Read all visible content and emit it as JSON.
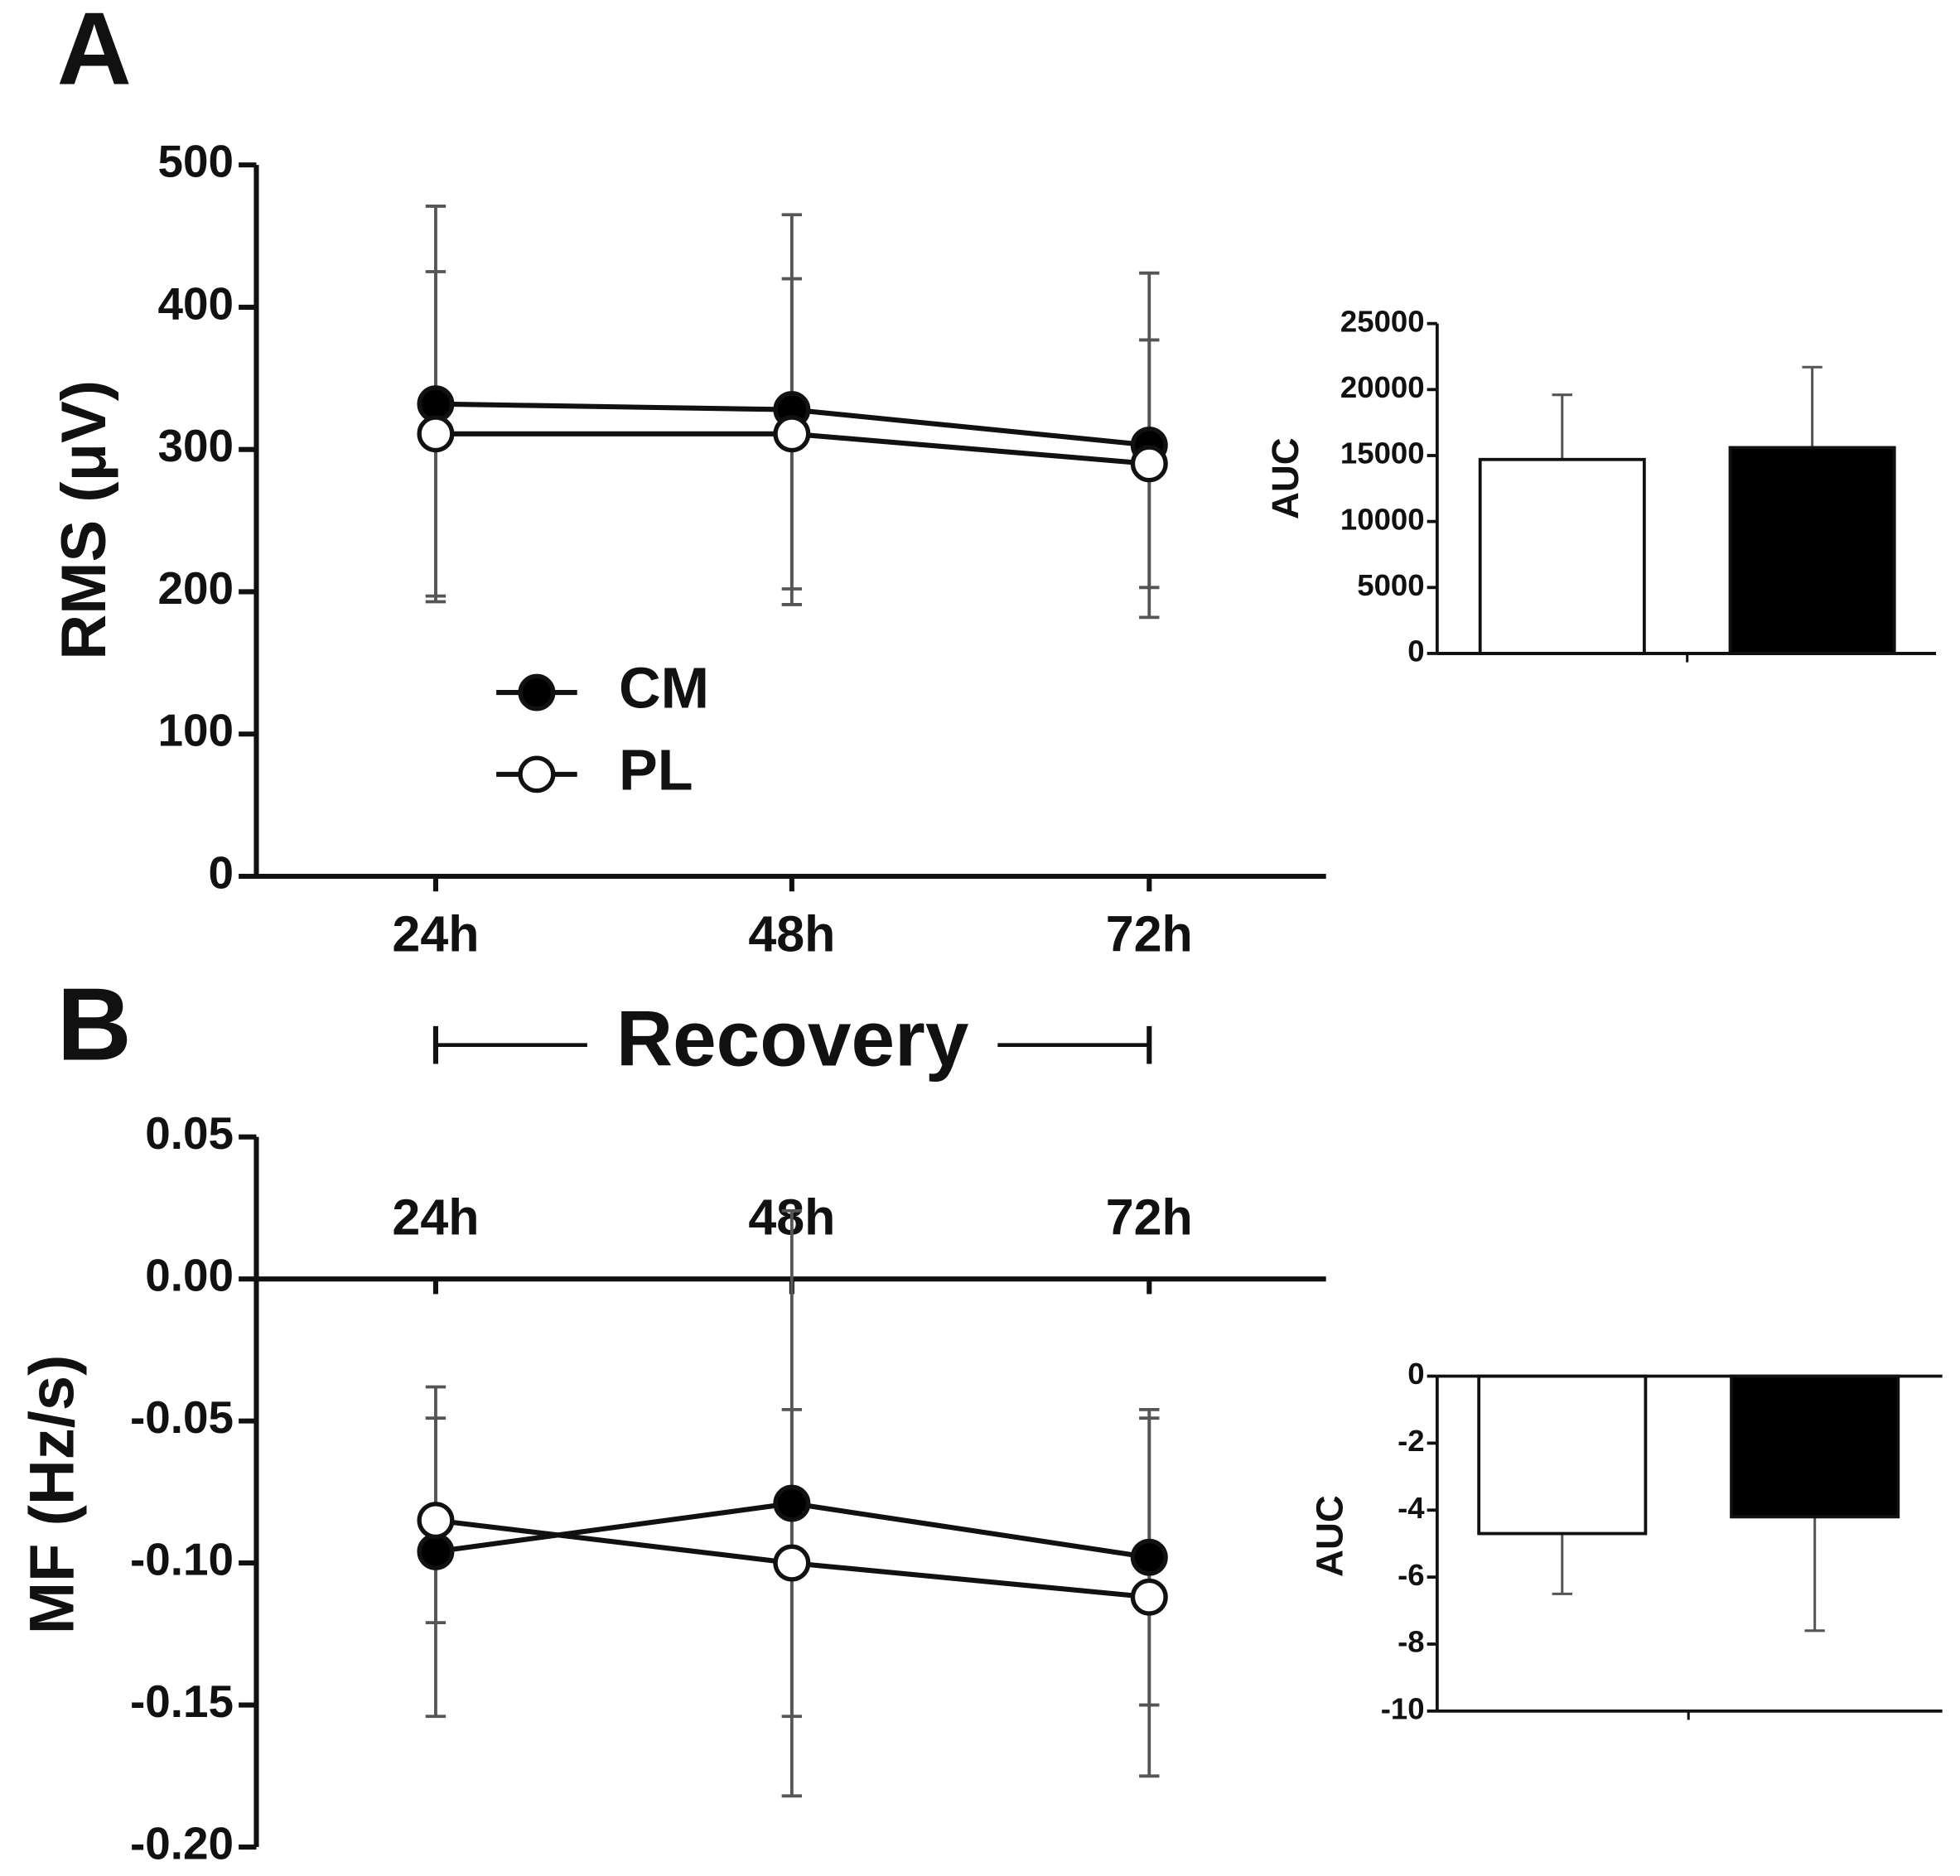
{
  "chart_data": [
    {
      "type": "line",
      "title": "A",
      "y_label": "RMS (μV)",
      "annotation": "Recovery",
      "categories": [
        "24h",
        "48h",
        "72h"
      ],
      "series": [
        {
          "name": "CM",
          "color": "#000000",
          "values": [
            332,
            328,
            303
          ],
          "errors": [
            139,
            137,
            121
          ]
        },
        {
          "name": "PL",
          "color": "#ffffff",
          "values": [
            311,
            311,
            290
          ],
          "errors": [
            114,
            109,
            87
          ]
        }
      ],
      "ylim": [
        0,
        500
      ],
      "yticks": [
        0,
        100,
        200,
        300,
        400,
        500
      ]
    },
    {
      "type": "bar",
      "y_label": "AUC",
      "values": [
        14700,
        15600
      ],
      "errors": [
        4900,
        6100
      ],
      "colors": [
        "#ffffff",
        "#000000"
      ],
      "ylim": [
        0,
        25000
      ],
      "yticks": [
        0,
        5000,
        10000,
        15000,
        20000,
        25000
      ]
    },
    {
      "type": "line",
      "title": "B",
      "y_label": "MF (Hz/s)",
      "categories": [
        "24h",
        "48h",
        "72h"
      ],
      "series": [
        {
          "color": "#000000",
          "values": [
            -0.096,
            -0.079,
            -0.098
          ],
          "errors": [
            0.058,
            0.103,
            0.052
          ]
        },
        {
          "color": "#ffffff",
          "values": [
            -0.085,
            -0.1,
            -0.112
          ],
          "errors": [
            0.036,
            0.054,
            0.063
          ]
        }
      ],
      "ylim": [
        -0.2,
        0.05
      ],
      "yticks": [
        {
          "value": -0.2,
          "label": "-0.20"
        },
        -0.15,
        {
          "value": -0.1,
          "label": "-0.10"
        },
        -0.05,
        {
          "value": 0,
          "label": "0.00"
        },
        0.05
      ]
    },
    {
      "type": "bar",
      "y_label": "AUC",
      "values": [
        -4.7,
        -4.2
      ],
      "errors": [
        1.8,
        3.4
      ],
      "colors": [
        "#ffffff",
        "#000000"
      ],
      "ylim": [
        -10,
        0
      ],
      "yticks": [
        -10,
        -8,
        -6,
        -4,
        -2,
        0
      ]
    }
  ]
}
